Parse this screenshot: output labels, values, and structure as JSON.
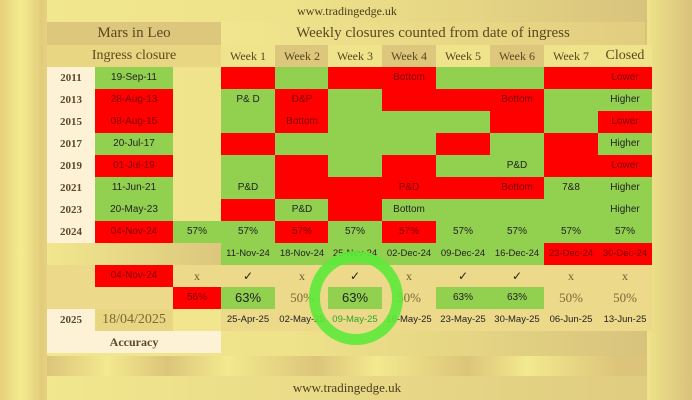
{
  "site_top": "www.tradingedge.uk",
  "site_bottom": "www.tradingedge.uk",
  "header": {
    "left_title": "Mars in Leo",
    "left_subtitle": "Ingress closure",
    "right_title": "Weekly closures counted from date of ingress",
    "weeks": [
      "Week 1",
      "Week 2",
      "Week 3",
      "Week 4",
      "Week 5",
      "Week 6",
      "Week 7"
    ],
    "closed": "Closed"
  },
  "colors": {
    "green": "#92d050",
    "red": "#ff0000",
    "circle": "#5fe83b"
  },
  "rows": [
    {
      "year": "2011",
      "date": "19-Sep-11",
      "date_color": "g",
      "cells": [
        [
          "r",
          ""
        ],
        [
          "g",
          ""
        ],
        [
          "r",
          ""
        ],
        [
          "r",
          "Bottom"
        ],
        [
          "g",
          ""
        ],
        [
          "g",
          ""
        ],
        [
          "r",
          ""
        ],
        [
          "r",
          "Lower"
        ]
      ]
    },
    {
      "year": "2013",
      "date": "28-Aug-13",
      "date_color": "r",
      "cells": [
        [
          "g",
          "P& D"
        ],
        [
          "r",
          "D&P"
        ],
        [
          "g",
          ""
        ],
        [
          "r",
          ""
        ],
        [
          "r",
          ""
        ],
        [
          "r",
          "Bottom"
        ],
        [
          "g",
          ""
        ],
        [
          "g",
          "Higher"
        ]
      ]
    },
    {
      "year": "2015",
      "date": "08-Aug-15",
      "date_color": "r",
      "cells": [
        [
          "g",
          ""
        ],
        [
          "r",
          "Bottom"
        ],
        [
          "g",
          ""
        ],
        [
          "g",
          ""
        ],
        [
          "g",
          ""
        ],
        [
          "r",
          ""
        ],
        [
          "g",
          ""
        ],
        [
          "r",
          "Lower"
        ]
      ]
    },
    {
      "year": "2017",
      "date": "20-Jul-17",
      "date_color": "g",
      "cells": [
        [
          "r",
          ""
        ],
        [
          "g",
          ""
        ],
        [
          "g",
          ""
        ],
        [
          "g",
          ""
        ],
        [
          "r",
          ""
        ],
        [
          "g",
          ""
        ],
        [
          "r",
          ""
        ],
        [
          "g",
          "Higher"
        ]
      ]
    },
    {
      "year": "2019",
      "date": "01-Jul-19",
      "date_color": "r",
      "cells": [
        [
          "g",
          ""
        ],
        [
          "r",
          ""
        ],
        [
          "g",
          ""
        ],
        [
          "r",
          ""
        ],
        [
          "g",
          ""
        ],
        [
          "g",
          "P&D"
        ],
        [
          "r",
          ""
        ],
        [
          "r",
          "Lower"
        ]
      ]
    },
    {
      "year": "2021",
      "date": "11-Jun-21",
      "date_color": "g",
      "cells": [
        [
          "g",
          "P&D"
        ],
        [
          "r",
          ""
        ],
        [
          "r",
          ""
        ],
        [
          "r",
          "P&D"
        ],
        [
          "r",
          ""
        ],
        [
          "r",
          "Bottom"
        ],
        [
          "g",
          "7&8"
        ],
        [
          "g",
          "Higher"
        ]
      ]
    },
    {
      "year": "2023",
      "date": "20-May-23",
      "date_color": "g",
      "cells": [
        [
          "r",
          ""
        ],
        [
          "g",
          "P&D"
        ],
        [
          "r",
          ""
        ],
        [
          "g",
          "Bottom"
        ],
        [
          "g",
          ""
        ],
        [
          "g",
          ""
        ],
        [
          "g",
          ""
        ],
        [
          "g",
          "Higher"
        ]
      ]
    }
  ],
  "row_2024": {
    "year": "2024",
    "date": "04-Nov-24",
    "extra": "57%",
    "cells": [
      [
        "g",
        "57%"
      ],
      [
        "r",
        "57%"
      ],
      [
        "g",
        "57%"
      ],
      [
        "r",
        "57%"
      ],
      [
        "g",
        "57%"
      ],
      [
        "g",
        "57%"
      ],
      [
        "g",
        "57%"
      ],
      [
        "g",
        "57%"
      ]
    ]
  },
  "dates_2024": [
    [
      "g",
      "11-Nov-24"
    ],
    [
      "g",
      "18-Nov-24"
    ],
    [
      "g",
      "25-Nov-24"
    ],
    [
      "g",
      "02-Dec-24"
    ],
    [
      "g",
      "09-Dec-24"
    ],
    [
      "g",
      "16-Dec-24"
    ],
    [
      "r",
      "23-Dec-24"
    ],
    [
      "r",
      "30-Dec-24"
    ]
  ],
  "check_row": {
    "date": "04-Nov-24",
    "extra": "x",
    "marks": [
      "✓",
      "x",
      "✓",
      "x",
      "✓",
      "✓",
      "x",
      "x"
    ]
  },
  "accuracy_row": {
    "extra": "56%",
    "values": [
      [
        "g",
        "63%"
      ],
      [
        "n",
        "50%"
      ],
      [
        "g",
        "63%"
      ],
      [
        "n",
        "50%"
      ],
      [
        "g",
        "63%"
      ],
      [
        "g",
        "63%"
      ],
      [
        "n",
        "50%"
      ],
      [
        "n",
        "50%"
      ]
    ]
  },
  "row_2025": {
    "year": "2025",
    "date": "18/04/2025",
    "dates": [
      "25-Apr-25",
      "02-May-25",
      "09-May-25",
      "16-May-25",
      "23-May-25",
      "30-May-25",
      "06-Jun-25",
      "13-Jun-25"
    ]
  },
  "accuracy_label": "Accuracy"
}
